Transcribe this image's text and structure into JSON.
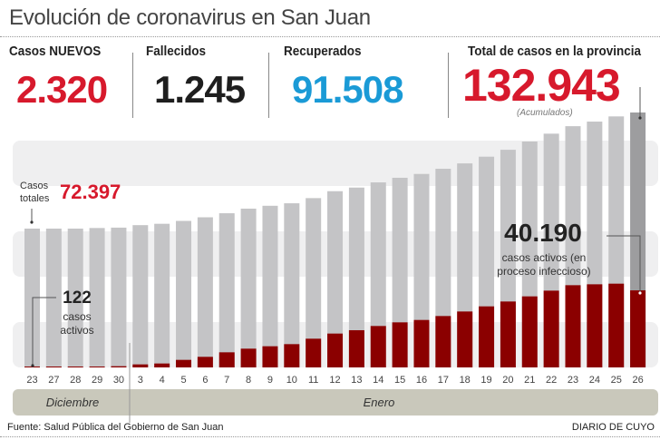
{
  "title": "Evolución de coronavirus en San Juan",
  "stats": [
    {
      "label": "Casos NUEVOS",
      "value": "2.320",
      "color": "#d7192c"
    },
    {
      "label": "Fallecidos",
      "value": "1.245",
      "color": "#1e1e1e"
    },
    {
      "label": "Recuperados",
      "value": "91.508",
      "color": "#1a9ad6"
    },
    {
      "label": "Total de casos en la provincia",
      "value": "132.943",
      "color": "#d7192c",
      "note": "(Acumulados)"
    }
  ],
  "annotations": {
    "total_label": "Casos totales",
    "total_label_1": "Casos",
    "total_label_2": "totales",
    "total_value": "72.397",
    "active_start_value": "122",
    "active_start_label_1": "casos",
    "active_start_label_2": "activos",
    "active_end_value": "40.190",
    "active_end_label_1": "casos activos (en",
    "active_end_label_2": "proceso infeccioso)"
  },
  "months": [
    {
      "label": "Diciembre"
    },
    {
      "label": "Enero"
    }
  ],
  "footer": {
    "source": "Fuente: Salud Pública del Gobierno de San Juan",
    "brand": "DIARIO DE CUYO"
  },
  "chart_data": {
    "type": "bar",
    "stacked": "overlay",
    "categories": [
      "23",
      "27",
      "28",
      "29",
      "30",
      "3",
      "4",
      "5",
      "6",
      "7",
      "8",
      "9",
      "10",
      "11",
      "12",
      "13",
      "14",
      "15",
      "16",
      "17",
      "18",
      "19",
      "20",
      "21",
      "22",
      "23",
      "24",
      "25",
      "26"
    ],
    "series": [
      {
        "name": "Casos totales",
        "color": "#c4c4c6",
        "values": [
          72397,
          72400,
          72400,
          72700,
          72900,
          74200,
          74900,
          76400,
          78300,
          80400,
          82800,
          84300,
          85600,
          88300,
          91900,
          93800,
          96500,
          98900,
          100900,
          103600,
          106400,
          109900,
          113500,
          117800,
          121900,
          125800,
          128200,
          130900,
          132943
        ]
      },
      {
        "name": "casos activos",
        "color": "#8b0000",
        "values": [
          122,
          300,
          300,
          470,
          630,
          1580,
          2050,
          3940,
          5520,
          7880,
          9780,
          11040,
          12140,
          14980,
          17660,
          19400,
          21600,
          23500,
          24750,
          26800,
          29170,
          31840,
          34380,
          37050,
          40040,
          42880,
          43350,
          43680,
          40190
        ]
      }
    ],
    "ylim": [
      0,
      132943
    ],
    "grid": false,
    "highlight_last_color": "#9d9d9f"
  }
}
